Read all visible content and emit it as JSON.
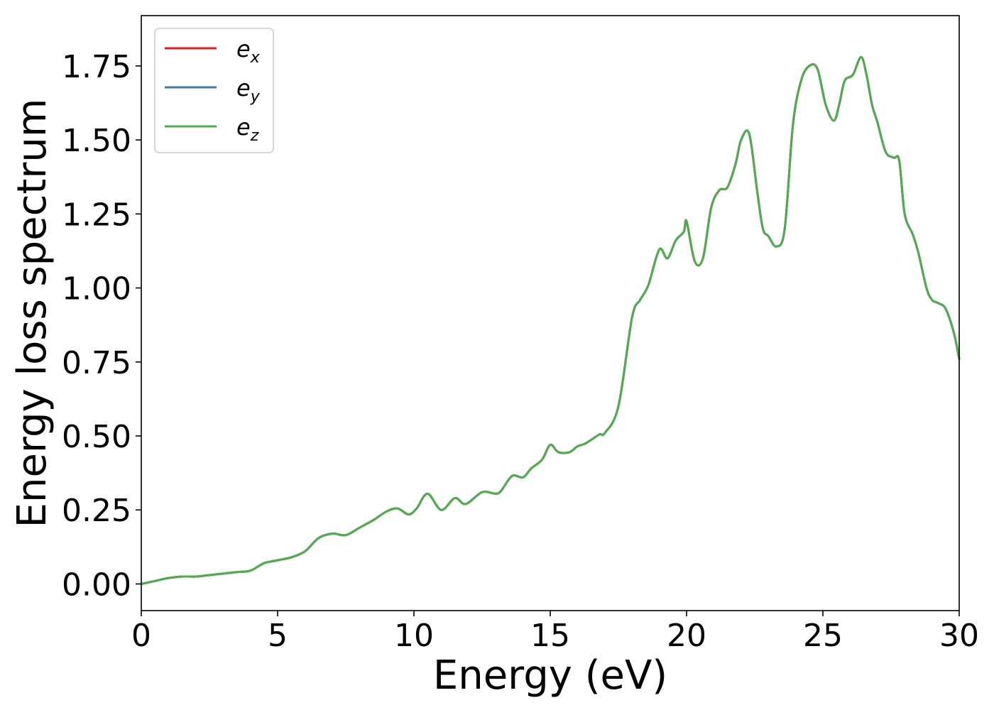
{
  "chart_data": {
    "type": "line",
    "xlabel": "Energy (eV)",
    "ylabel": "Energy loss spectrum",
    "xlim": [
      0,
      30
    ],
    "ylim": [
      -0.09,
      1.92
    ],
    "x_ticks": [
      "0",
      "5",
      "10",
      "15",
      "20",
      "25",
      "30"
    ],
    "x_tick_values": [
      0,
      5,
      10,
      15,
      20,
      25,
      30
    ],
    "y_ticks": [
      "0.00",
      "0.25",
      "0.50",
      "0.75",
      "1.00",
      "1.25",
      "1.50",
      "1.75"
    ],
    "y_tick_values": [
      0,
      0.25,
      0.5,
      0.75,
      1.0,
      1.25,
      1.5,
      1.75
    ],
    "grid": false,
    "legend_position": "top-left",
    "series": [
      {
        "name": "e_x",
        "legend_base": "e",
        "legend_sub": "x",
        "color": "#e41a1c",
        "values": "shared"
      },
      {
        "name": "e_y",
        "legend_base": "e",
        "legend_sub": "y",
        "color": "#377eb8",
        "values": "shared"
      },
      {
        "name": "e_z",
        "legend_base": "e",
        "legend_sub": "z",
        "color": "#4daf4a",
        "values": "shared"
      }
    ],
    "x": [
      0,
      0.5,
      1.0,
      1.5,
      2.0,
      2.5,
      3.0,
      3.5,
      4.0,
      4.5,
      5.0,
      5.5,
      6.0,
      6.5,
      7.0,
      7.5,
      8.0,
      8.5,
      9.0,
      9.4,
      9.8,
      10.1,
      10.5,
      11.0,
      11.5,
      11.9,
      12.5,
      13.0,
      13.2,
      13.6,
      14.0,
      14.3,
      14.7,
      15.0,
      15.3,
      15.7,
      16.0,
      16.3,
      16.8,
      17.0,
      17.5,
      18.0,
      18.3,
      18.6,
      19.0,
      19.3,
      19.6,
      19.9,
      20.0,
      20.3,
      20.6,
      20.9,
      21.2,
      21.5,
      21.8,
      22.0,
      22.3,
      22.6,
      22.8,
      23.0,
      23.3,
      23.6,
      23.9,
      24.2,
      24.5,
      24.8,
      25.1,
      25.4,
      25.6,
      25.8,
      26.1,
      26.4,
      26.6,
      26.8,
      27.0,
      27.3,
      27.6,
      27.8,
      28.0,
      28.3,
      28.5,
      28.8,
      29.0,
      29.2,
      29.5,
      29.8,
      30.0
    ],
    "y": [
      0.0,
      0.01,
      0.02,
      0.025,
      0.025,
      0.03,
      0.035,
      0.04,
      0.045,
      0.07,
      0.08,
      0.09,
      0.11,
      0.155,
      0.17,
      0.165,
      0.19,
      0.215,
      0.245,
      0.255,
      0.235,
      0.255,
      0.305,
      0.25,
      0.29,
      0.27,
      0.31,
      0.305,
      0.315,
      0.365,
      0.36,
      0.39,
      0.42,
      0.47,
      0.445,
      0.445,
      0.465,
      0.475,
      0.505,
      0.51,
      0.6,
      0.9,
      0.96,
      1.01,
      1.13,
      1.1,
      1.16,
      1.19,
      1.225,
      1.09,
      1.1,
      1.27,
      1.33,
      1.34,
      1.42,
      1.5,
      1.52,
      1.32,
      1.2,
      1.175,
      1.14,
      1.2,
      1.55,
      1.7,
      1.75,
      1.74,
      1.62,
      1.565,
      1.62,
      1.7,
      1.72,
      1.78,
      1.72,
      1.62,
      1.56,
      1.46,
      1.44,
      1.43,
      1.25,
      1.18,
      1.12,
      1.0,
      0.96,
      0.95,
      0.93,
      0.85,
      0.76
    ]
  }
}
